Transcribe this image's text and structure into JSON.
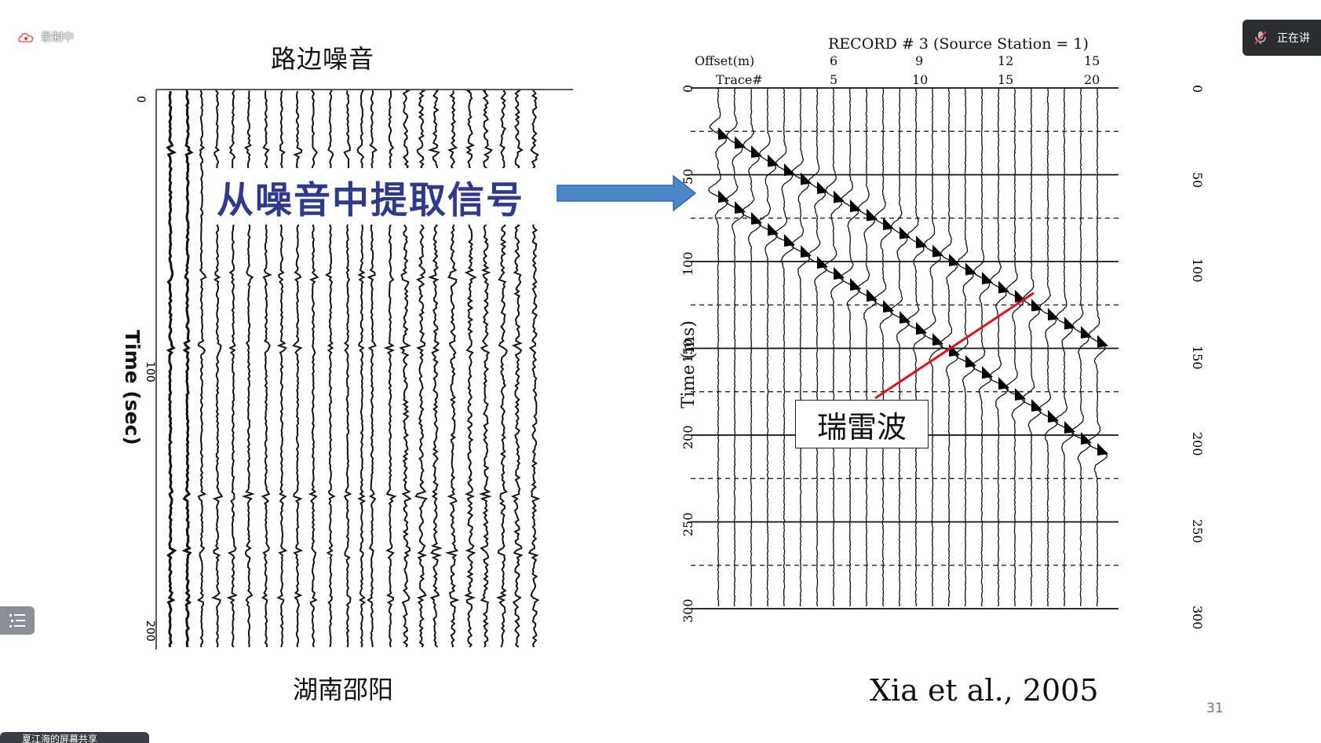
{
  "recording": {
    "label": "录制中"
  },
  "speaking": {
    "label": "正在讲"
  },
  "left_panel": {
    "title": "路边噪音",
    "caption": "湖南邵阳",
    "ylabel": "Time (sec)",
    "ticks": [
      "0",
      "100",
      "200"
    ],
    "callout": "从噪音中提取信号"
  },
  "right_panel": {
    "record_title": "RECORD # 3 (Source Station = 1)",
    "offset_label": "Offset(m)",
    "trace_label": "Trace#",
    "offset_values": [
      "6",
      "9",
      "12",
      "15"
    ],
    "trace_values": [
      "5",
      "10",
      "15",
      "20"
    ],
    "ylabel": "Time (ms)",
    "ticks": [
      "0",
      "50",
      "100",
      "150",
      "200",
      "250",
      "300"
    ],
    "annotation": "瑞雷波",
    "caption": "Xia et al., 2005"
  },
  "slide_number": "31",
  "bottom_bar": {
    "label": "夏江海的屏幕共享"
  },
  "colors": {
    "arrow": "#4a86c8",
    "callout_text": "#2e3a8c",
    "annotation_line": "#d9141a"
  }
}
